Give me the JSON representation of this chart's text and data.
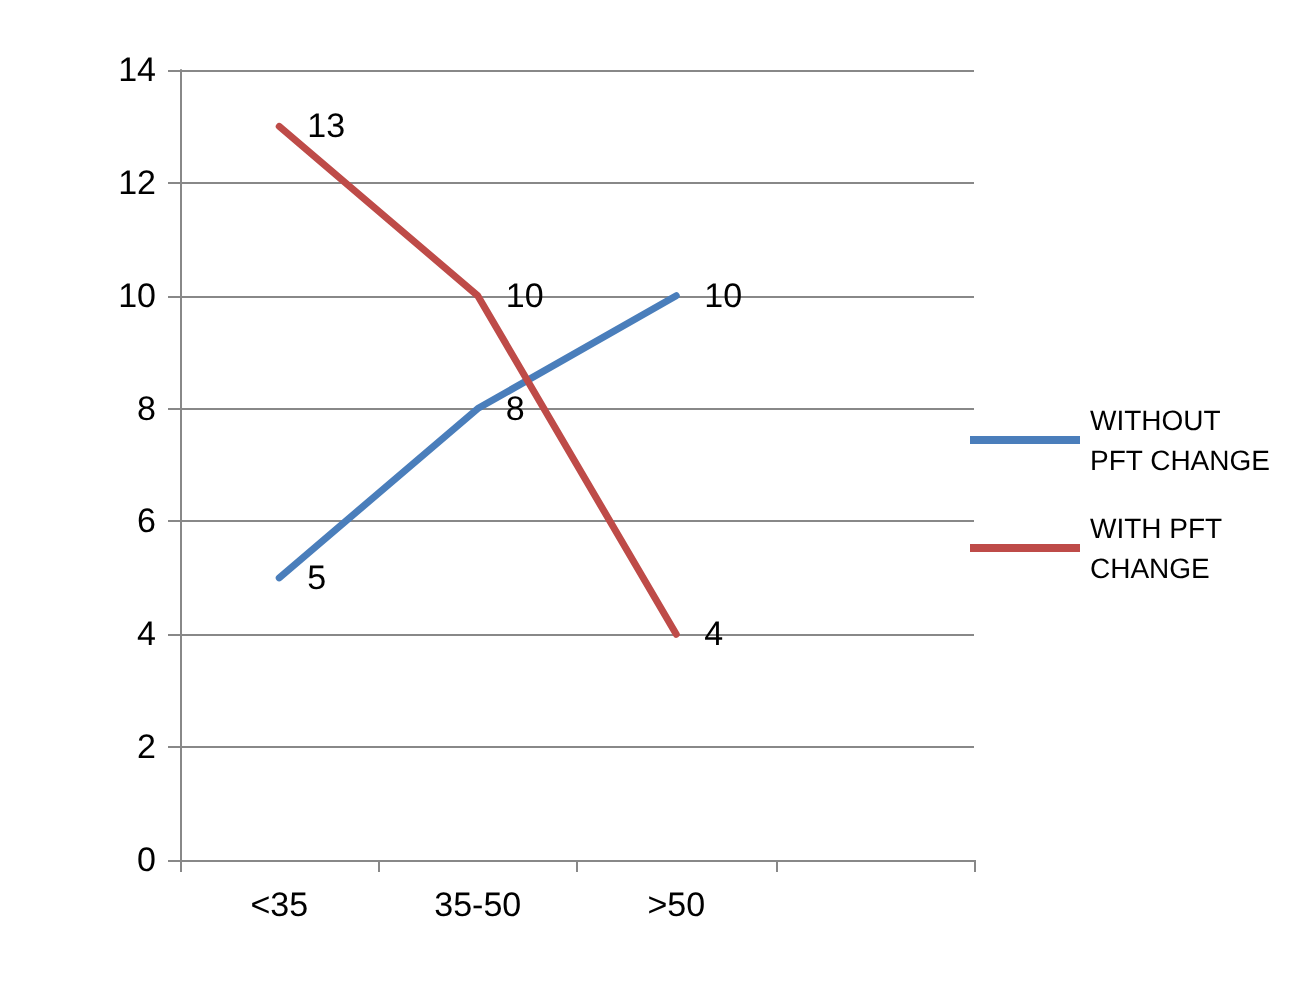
{
  "chart_data": {
    "type": "line",
    "categories": [
      "<35",
      "35-50",
      ">50",
      null
    ],
    "series": [
      {
        "name": "WITHOUT PFT CHANGE",
        "color": "#4a7ebb",
        "values": [
          5,
          8,
          10,
          null
        ]
      },
      {
        "name": "WITH PFT CHANGE",
        "color": "#be4b48",
        "values": [
          13,
          10,
          4,
          null
        ]
      }
    ],
    "ylim": [
      0,
      14
    ],
    "yticks": [
      0,
      2,
      4,
      6,
      8,
      10,
      12,
      14
    ],
    "grid": "y",
    "legend": "right",
    "marker": "none",
    "line_style": "solid",
    "data_labels": true
  }
}
